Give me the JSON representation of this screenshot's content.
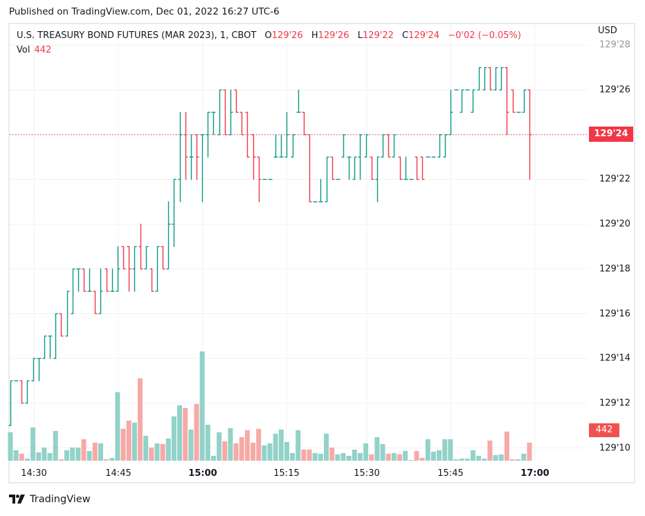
{
  "published": "Published on TradingView.com, Dec 01, 2022 16:27 UTC-6",
  "legend": {
    "symbol": "U.S. TREASURY BOND FUTURES (MAR 2023), 1, CBOT",
    "o_key": "O",
    "o": "129'26",
    "h_key": "H",
    "h": "129'26",
    "l_key": "L",
    "l": "129'22",
    "c_key": "C",
    "c": "129'24",
    "change": "−0'02 (−0.05%)",
    "vol_key": "Vol",
    "vol": "442"
  },
  "currency": "USD",
  "brand": "TradingView",
  "colors": {
    "up": "#089981",
    "down": "#f23645",
    "vol_up": "#92d2c8",
    "vol_down": "#f7a9a7",
    "last_price": "#f23645",
    "volume_tag": "#ef5350"
  },
  "chart_data": {
    "type": "ohlc",
    "interval": "1 minute",
    "price_ticks": [
      "129'28",
      "129'26",
      "129'24",
      "129'22",
      "129'20",
      "129'18",
      "129'16",
      "129'14",
      "129'12",
      "129'10"
    ],
    "time_ticks": [
      {
        "label": "14:30",
        "bold": false
      },
      {
        "label": "14:45",
        "bold": false
      },
      {
        "label": "15:00",
        "bold": true
      },
      {
        "label": "15:15",
        "bold": false
      },
      {
        "label": "15:30",
        "bold": false
      },
      {
        "label": "15:45",
        "bold": false
      },
      {
        "label": "17:00",
        "bold": true
      }
    ],
    "last_price": "129'24",
    "last_volume": "442",
    "grid": true,
    "bars_ohlc": [
      [
        "129'11",
        "129'13",
        "129'11",
        "129'13"
      ],
      [
        "129'13",
        "129'13",
        "129'13",
        "129'13"
      ],
      [
        "129'13",
        "129'13",
        "129'12",
        "129'12"
      ],
      [
        "129'12",
        "129'13",
        "129'12",
        "129'13"
      ],
      [
        "129'13",
        "129'14",
        "129'13",
        "129'14"
      ],
      [
        "129'14",
        "129'14",
        "129'13",
        "129'14"
      ],
      [
        "129'14",
        "129'15",
        "129'14",
        "129'15"
      ],
      [
        "129'15",
        "129'15",
        "129'14",
        "129'15"
      ],
      [
        "129'14",
        "129'16",
        "129'14",
        "129'16"
      ],
      [
        "129'16",
        "129'16",
        "129'15",
        "129'15"
      ],
      [
        "129'15",
        "129'17",
        "129'15",
        "129'17"
      ],
      [
        "129'16",
        "129'18",
        "129'16",
        "129'18"
      ],
      [
        "129'18",
        "129'18",
        "129'17",
        "129'18"
      ],
      [
        "129'18",
        "129'18",
        "129'17",
        "129'17"
      ],
      [
        "129'17",
        "129'18",
        "129'17",
        "129'17"
      ],
      [
        "129'17",
        "129'17",
        "129'16",
        "129'16"
      ],
      [
        "129'16",
        "129'18",
        "129'16",
        "129'17"
      ],
      [
        "129'18",
        "129'18",
        "129'17",
        "129'17"
      ],
      [
        "129'17",
        "129'18",
        "129'17",
        "129'17"
      ],
      [
        "129'17",
        "129'19",
        "129'17",
        "129'18"
      ],
      [
        "129'19",
        "129'19",
        "129'18",
        "129'18"
      ],
      [
        "129'19",
        "129'19",
        "129'17",
        "129'18"
      ],
      [
        "129'18",
        "129'19",
        "129'17",
        "129'19"
      ],
      [
        "129'19",
        "129'20",
        "129'18",
        "129'18"
      ],
      [
        "129'18",
        "129'19",
        "129'18",
        "129'19"
      ],
      [
        "129'18",
        "129'18",
        "129'17",
        "129'17"
      ],
      [
        "129'17",
        "129'19",
        "129'17",
        "129'19"
      ],
      [
        "129'19",
        "129'19",
        "129'18",
        "129'18"
      ],
      [
        "129'18",
        "129'21",
        "129'18",
        "129'20"
      ],
      [
        "129'20",
        "129'22",
        "129'19",
        "129'22"
      ],
      [
        "129'22",
        "129'25",
        "129'21",
        "129'24"
      ],
      [
        "129'24",
        "129'25",
        "129'22",
        "129'23"
      ],
      [
        "129'23",
        "129'24",
        "129'22",
        "129'23"
      ],
      [
        "129'24",
        "129'24",
        "129'22",
        "129'23"
      ],
      [
        "129'24",
        "129'24",
        "129'21",
        "129'24"
      ],
      [
        "129'24",
        "129'25",
        "129'23",
        "129'25"
      ],
      [
        "129'25",
        "129'25",
        "129'24",
        "129'25"
      ],
      [
        "129'24",
        "129'26",
        "129'24",
        "129'26"
      ],
      [
        "129'26",
        "129'26",
        "129'24",
        "129'24"
      ],
      [
        "129'24",
        "129'26",
        "129'24",
        "129'25"
      ],
      [
        "129'26",
        "129'26",
        "129'25",
        "129'25"
      ],
      [
        "129'25",
        "129'25",
        "129'24",
        "129'24"
      ],
      [
        "129'25",
        "129'25",
        "129'23",
        "129'23"
      ],
      [
        "129'24",
        "129'24",
        "129'22",
        "129'23"
      ],
      [
        "129'23",
        "129'23",
        "129'21",
        "129'22"
      ],
      [
        "129'22",
        "129'22",
        "129'22",
        "129'22"
      ],
      [
        "129'22",
        "129'22",
        "129'22",
        "129'22"
      ],
      [
        "129'23",
        "129'24",
        "129'23",
        "129'23"
      ],
      [
        "129'23",
        "129'24",
        "129'23",
        "129'23"
      ],
      [
        "129'23",
        "129'25",
        "129'23",
        "129'24"
      ],
      [
        "129'23",
        "129'24",
        "129'23",
        "129'24"
      ],
      [
        "129'25",
        "129'26",
        "129'25",
        "129'25"
      ],
      [
        "129'25",
        "129'25",
        "129'24",
        "129'24"
      ],
      [
        "129'24",
        "129'24",
        "129'21",
        "129'21"
      ],
      [
        "129'21",
        "129'21",
        "129'21",
        "129'21"
      ],
      [
        "129'21",
        "129'22",
        "129'21",
        "129'21"
      ],
      [
        "129'21",
        "129'23",
        "129'21",
        "129'23"
      ],
      [
        "129'23",
        "129'23",
        "129'22",
        "129'22"
      ],
      [
        "129'22",
        "129'22",
        "129'22",
        "129'22"
      ],
      [
        "129'23",
        "129'24",
        "129'23",
        "129'24"
      ],
      [
        "129'23",
        "129'23",
        "129'22",
        "129'23"
      ],
      [
        "129'22",
        "129'23",
        "129'22",
        "129'23"
      ],
      [
        "129'23",
        "129'24",
        "129'22",
        "129'24"
      ],
      [
        "129'23",
        "129'24",
        "129'23",
        "129'24"
      ],
      [
        "129'23",
        "129'23",
        "129'22",
        "129'22"
      ],
      [
        "129'22",
        "129'23",
        "129'21",
        "129'23"
      ],
      [
        "129'23",
        "129'24",
        "129'23",
        "129'24"
      ],
      [
        "129'24",
        "129'24",
        "129'23",
        "129'23"
      ],
      [
        "129'23",
        "129'24",
        "129'23",
        "129'24"
      ],
      [
        "129'23",
        "129'23",
        "129'22",
        "129'22"
      ],
      [
        "129'22",
        "129'23",
        "129'22",
        "129'22"
      ],
      [
        "129'22",
        "129'22",
        "129'22",
        "129'22"
      ],
      [
        "129'23",
        "129'23",
        "129'22",
        "129'22"
      ],
      [
        "129'23",
        "129'23",
        "129'22",
        "129'22"
      ],
      [
        "129'23",
        "129'23",
        "129'23",
        "129'23"
      ],
      [
        "129'23",
        "129'23",
        "129'23",
        "129'23"
      ],
      [
        "129'23",
        "129'24",
        "129'23",
        "129'24"
      ],
      [
        "129'23",
        "129'24",
        "129'23",
        "129'24"
      ],
      [
        "129'24",
        "129'26",
        "129'24",
        "129'25"
      ],
      [
        "129'26",
        "129'26",
        "129'26",
        "129'26"
      ],
      [
        "129'25",
        "129'26",
        "129'25",
        "129'26"
      ],
      [
        "129'26",
        "129'26",
        "129'26",
        "129'26"
      ],
      [
        "129'25",
        "129'26",
        "129'25",
        "129'26"
      ],
      [
        "129'26",
        "129'27",
        "129'26",
        "129'27"
      ],
      [
        "129'26",
        "129'27",
        "129'26",
        "129'27"
      ],
      [
        "129'27",
        "129'27",
        "129'26",
        "129'26"
      ],
      [
        "129'26",
        "129'27",
        "129'26",
        "129'27"
      ],
      [
        "129'26",
        "129'27",
        "129'26",
        "129'27"
      ],
      [
        "129'27",
        "129'27",
        "129'24",
        "129'25"
      ],
      [
        "129'26",
        "129'26",
        "129'25",
        "129'25"
      ],
      [
        "129'25",
        "129'25",
        "129'25",
        "129'25"
      ],
      [
        "129'25",
        "129'26",
        "129'25",
        "129'26"
      ],
      [
        "129'26",
        "129'26",
        "129'22",
        "129'24"
      ]
    ],
    "volumes": [
      697,
      255,
      170,
      51,
      816,
      204,
      323,
      187,
      731,
      34,
      255,
      323,
      323,
      527,
      238,
      442,
      425,
      34,
      68,
      1683,
      782,
      986,
      935,
      2023,
      612,
      323,
      425,
      408,
      544,
      1088,
      1360,
      1292,
      765,
      1394,
      2686,
      884,
      119,
      697,
      476,
      799,
      425,
      578,
      748,
      442,
      782,
      374,
      425,
      663,
      765,
      459,
      187,
      748,
      272,
      272,
      187,
      170,
      663,
      323,
      153,
      187,
      119,
      272,
      187,
      425,
      153,
      578,
      408,
      170,
      187,
      153,
      238,
      17,
      238,
      68,
      527,
      221,
      255,
      527,
      527,
      34,
      51,
      51,
      255,
      119,
      51,
      493,
      136,
      153,
      714,
      34,
      34,
      170,
      442
    ]
  }
}
